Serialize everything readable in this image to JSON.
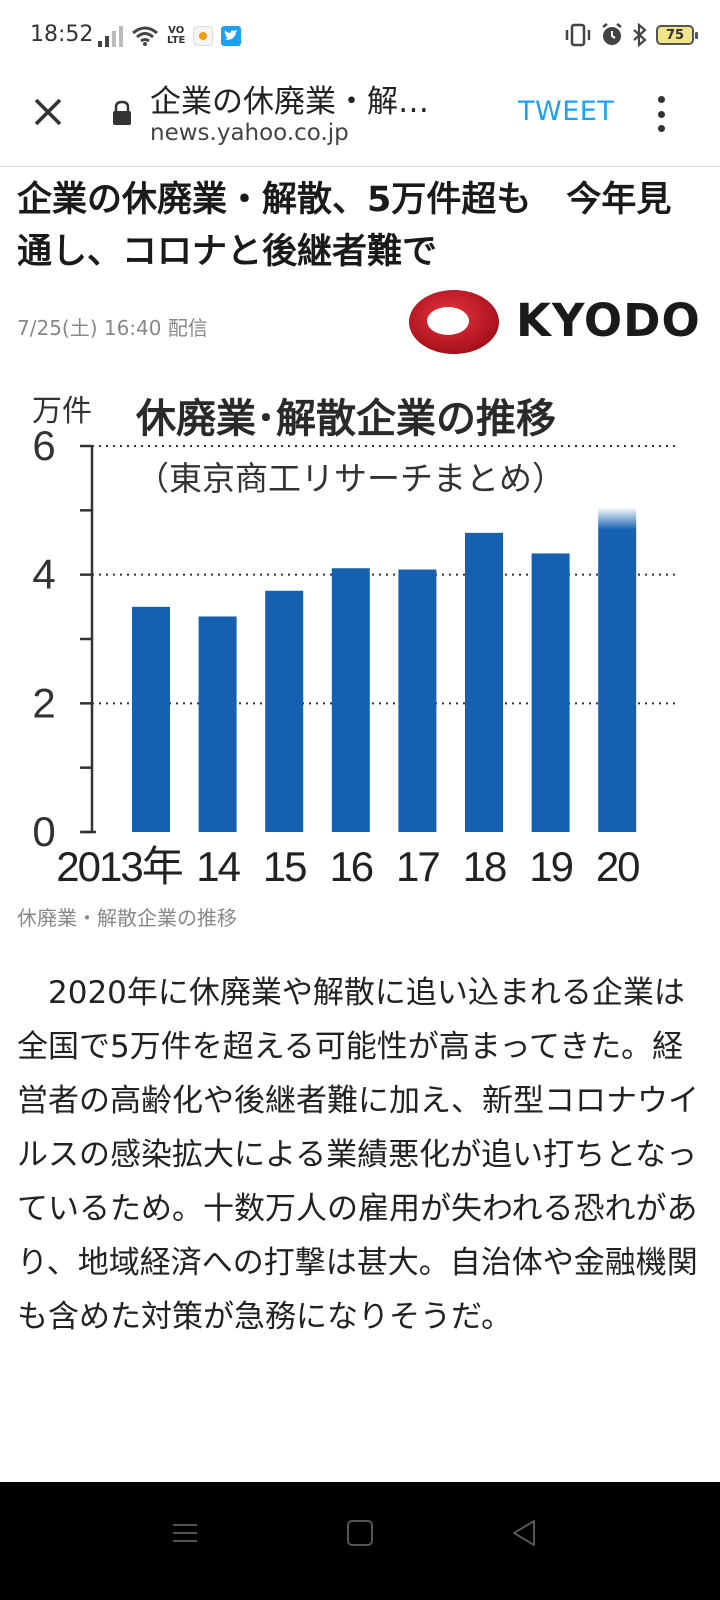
{
  "status_bar": {
    "time": "18:52",
    "network_label_top": "VO",
    "network_label_bottom": "LTE",
    "battery": "75"
  },
  "browser": {
    "page_title": "企業の休廃業・解…",
    "domain": "news.yahoo.co.jp",
    "tweet_label": "TWEET"
  },
  "article": {
    "headline": "企業の休廃業・解散、5万件超も　今年見通し、コロナと後継者難で",
    "date": "7/25(土) 16:40 配信",
    "source_logo": "KYODO",
    "image_caption": "休廃業・解散企業の推移",
    "body": "　2020年に休廃業や解散に追い込まれる企業は全国で5万件を超える可能性が高まってきた。経営者の高齢化や後継者難に加え、新型コロナウイルスの感染拡大による業績悪化が追い打ちとなっているため。十数万人の雇用が失われる恐れがあり、地域経済への打撃は甚大。自治体や金融機関も含めた対策が急務になりそうだ。"
  },
  "chart_data": {
    "type": "bar",
    "title": "休廃業･解散企業の推移",
    "subtitle": "（東京商工リサーチまとめ）",
    "ylabel": "万件",
    "categories": [
      "2013年",
      "14",
      "15",
      "16",
      "17",
      "18",
      "19",
      "20"
    ],
    "values": [
      3.5,
      3.35,
      3.75,
      4.1,
      4.08,
      4.65,
      4.33,
      5.05
    ],
    "ylim": [
      0,
      6
    ],
    "yticks": [
      "0",
      "2",
      "4",
      "6"
    ],
    "grid": "dotted at 2, 4, 6",
    "bar_color": "#1660b0",
    "last_bar_note": "projected (fades at top)"
  },
  "colors": {
    "accent": "#1da1f2",
    "kyodo_red": "#c8101e"
  }
}
